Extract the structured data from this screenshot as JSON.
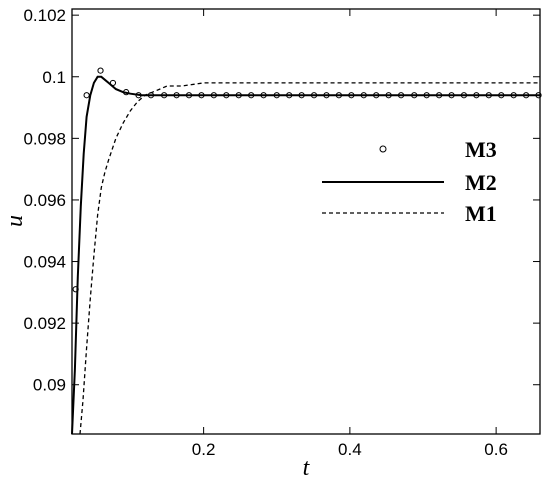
{
  "chart_data": {
    "type": "line",
    "xlabel": "t",
    "ylabel": "u",
    "xlim": [
      0.02,
      0.66
    ],
    "ylim": [
      0.0884,
      0.1022
    ],
    "x_ticks": [
      0.2,
      0.4,
      0.6
    ],
    "x_tick_labels": [
      "0.2",
      "0.4",
      "0.6"
    ],
    "y_ticks": [
      0.09,
      0.092,
      0.094,
      0.096,
      0.098,
      0.1,
      0.102
    ],
    "y_tick_labels": [
      "0.09",
      "0.092",
      "0.094",
      "0.096",
      "0.098",
      "0.1",
      "0.102"
    ],
    "grid": false,
    "legend_position": "right",
    "series": [
      {
        "name": "M3",
        "style": "markers",
        "marker": "circle",
        "x": [
          0.025,
          0.04,
          0.059,
          0.076,
          0.094,
          0.111,
          0.128,
          0.146,
          0.163,
          0.18,
          0.197,
          0.214,
          0.231,
          0.248,
          0.265,
          0.282,
          0.3,
          0.317,
          0.334,
          0.351,
          0.368,
          0.385,
          0.402,
          0.419,
          0.436,
          0.453,
          0.47,
          0.488,
          0.505,
          0.522,
          0.539,
          0.556,
          0.573,
          0.59,
          0.607,
          0.624,
          0.641,
          0.658
        ],
        "y": [
          0.0931,
          0.0994,
          0.1002,
          0.0998,
          0.0995,
          0.0994,
          0.0994,
          0.0994,
          0.0994,
          0.0994,
          0.0994,
          0.0994,
          0.0994,
          0.0994,
          0.0994,
          0.0994,
          0.0994,
          0.0994,
          0.0994,
          0.0994,
          0.0994,
          0.0994,
          0.0994,
          0.0994,
          0.0994,
          0.0994,
          0.0994,
          0.0994,
          0.0994,
          0.0994,
          0.0994,
          0.0994,
          0.0994,
          0.0994,
          0.0994,
          0.0994,
          0.0994,
          0.0994
        ]
      },
      {
        "name": "M2",
        "style": "solid",
        "x": [
          0.02,
          0.024,
          0.028,
          0.032,
          0.036,
          0.04,
          0.045,
          0.05,
          0.055,
          0.06,
          0.065,
          0.07,
          0.08,
          0.09,
          0.1,
          0.115,
          0.13,
          0.15,
          0.2,
          0.3,
          0.4,
          0.5,
          0.6,
          0.66
        ],
        "y": [
          0.0884,
          0.0905,
          0.0935,
          0.0958,
          0.0975,
          0.0987,
          0.0994,
          0.0998,
          0.1,
          0.1,
          0.0999,
          0.0998,
          0.0996,
          0.0995,
          0.09945,
          0.0994,
          0.0994,
          0.0994,
          0.0994,
          0.0994,
          0.0994,
          0.0994,
          0.0994,
          0.0994
        ]
      },
      {
        "name": "M1",
        "style": "dashed",
        "x": [
          0.031,
          0.035,
          0.04,
          0.045,
          0.05,
          0.055,
          0.06,
          0.065,
          0.07,
          0.08,
          0.09,
          0.1,
          0.11,
          0.12,
          0.13,
          0.14,
          0.15,
          0.17,
          0.2,
          0.25,
          0.3,
          0.4,
          0.5,
          0.6,
          0.66
        ],
        "y": [
          0.0884,
          0.0895,
          0.0912,
          0.0928,
          0.0942,
          0.0955,
          0.0964,
          0.0969,
          0.0973,
          0.098,
          0.0985,
          0.0989,
          0.0992,
          0.0994,
          0.0995,
          0.0996,
          0.0997,
          0.0997,
          0.0998,
          0.0998,
          0.0998,
          0.0998,
          0.0998,
          0.0998,
          0.0998
        ]
      }
    ]
  }
}
